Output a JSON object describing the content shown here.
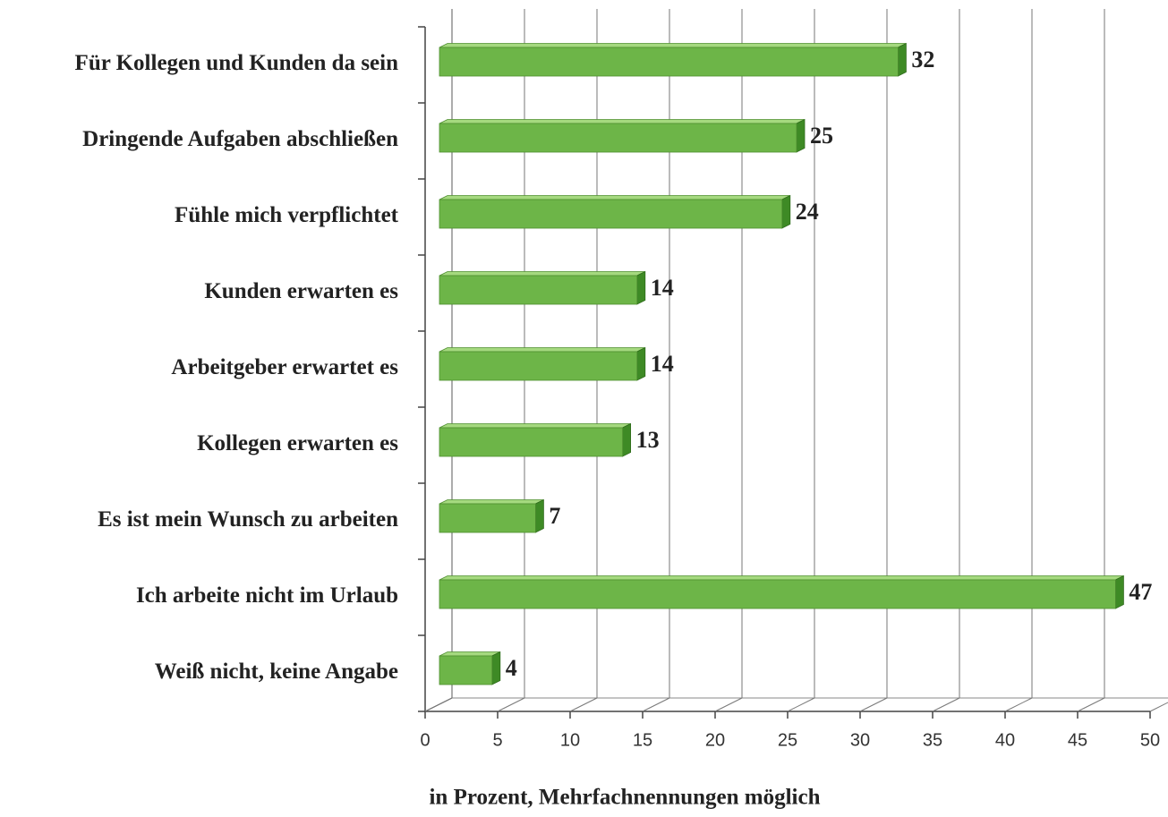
{
  "chart_data": {
    "type": "bar",
    "orientation": "horizontal",
    "categories": [
      "Für Kollegen und Kunden da sein",
      "Dringende Aufgaben abschließen",
      "Fühle mich verpflichtet",
      "Kunden erwarten es",
      "Arbeitgeber erwartet es",
      "Kollegen erwarten es",
      "Es ist mein Wunsch zu arbeiten",
      "Ich arbeite nicht im Urlaub",
      "Weiß nicht, keine Angabe"
    ],
    "values": [
      32,
      25,
      24,
      14,
      14,
      13,
      7,
      47,
      4
    ],
    "color": "#6db548",
    "xlim": [
      0,
      50
    ],
    "xticks": [
      0,
      5,
      10,
      15,
      20,
      25,
      30,
      35,
      40,
      45,
      50
    ],
    "xlabel": "in Prozent, Mehrfachnennungen möglich",
    "grid": true
  }
}
